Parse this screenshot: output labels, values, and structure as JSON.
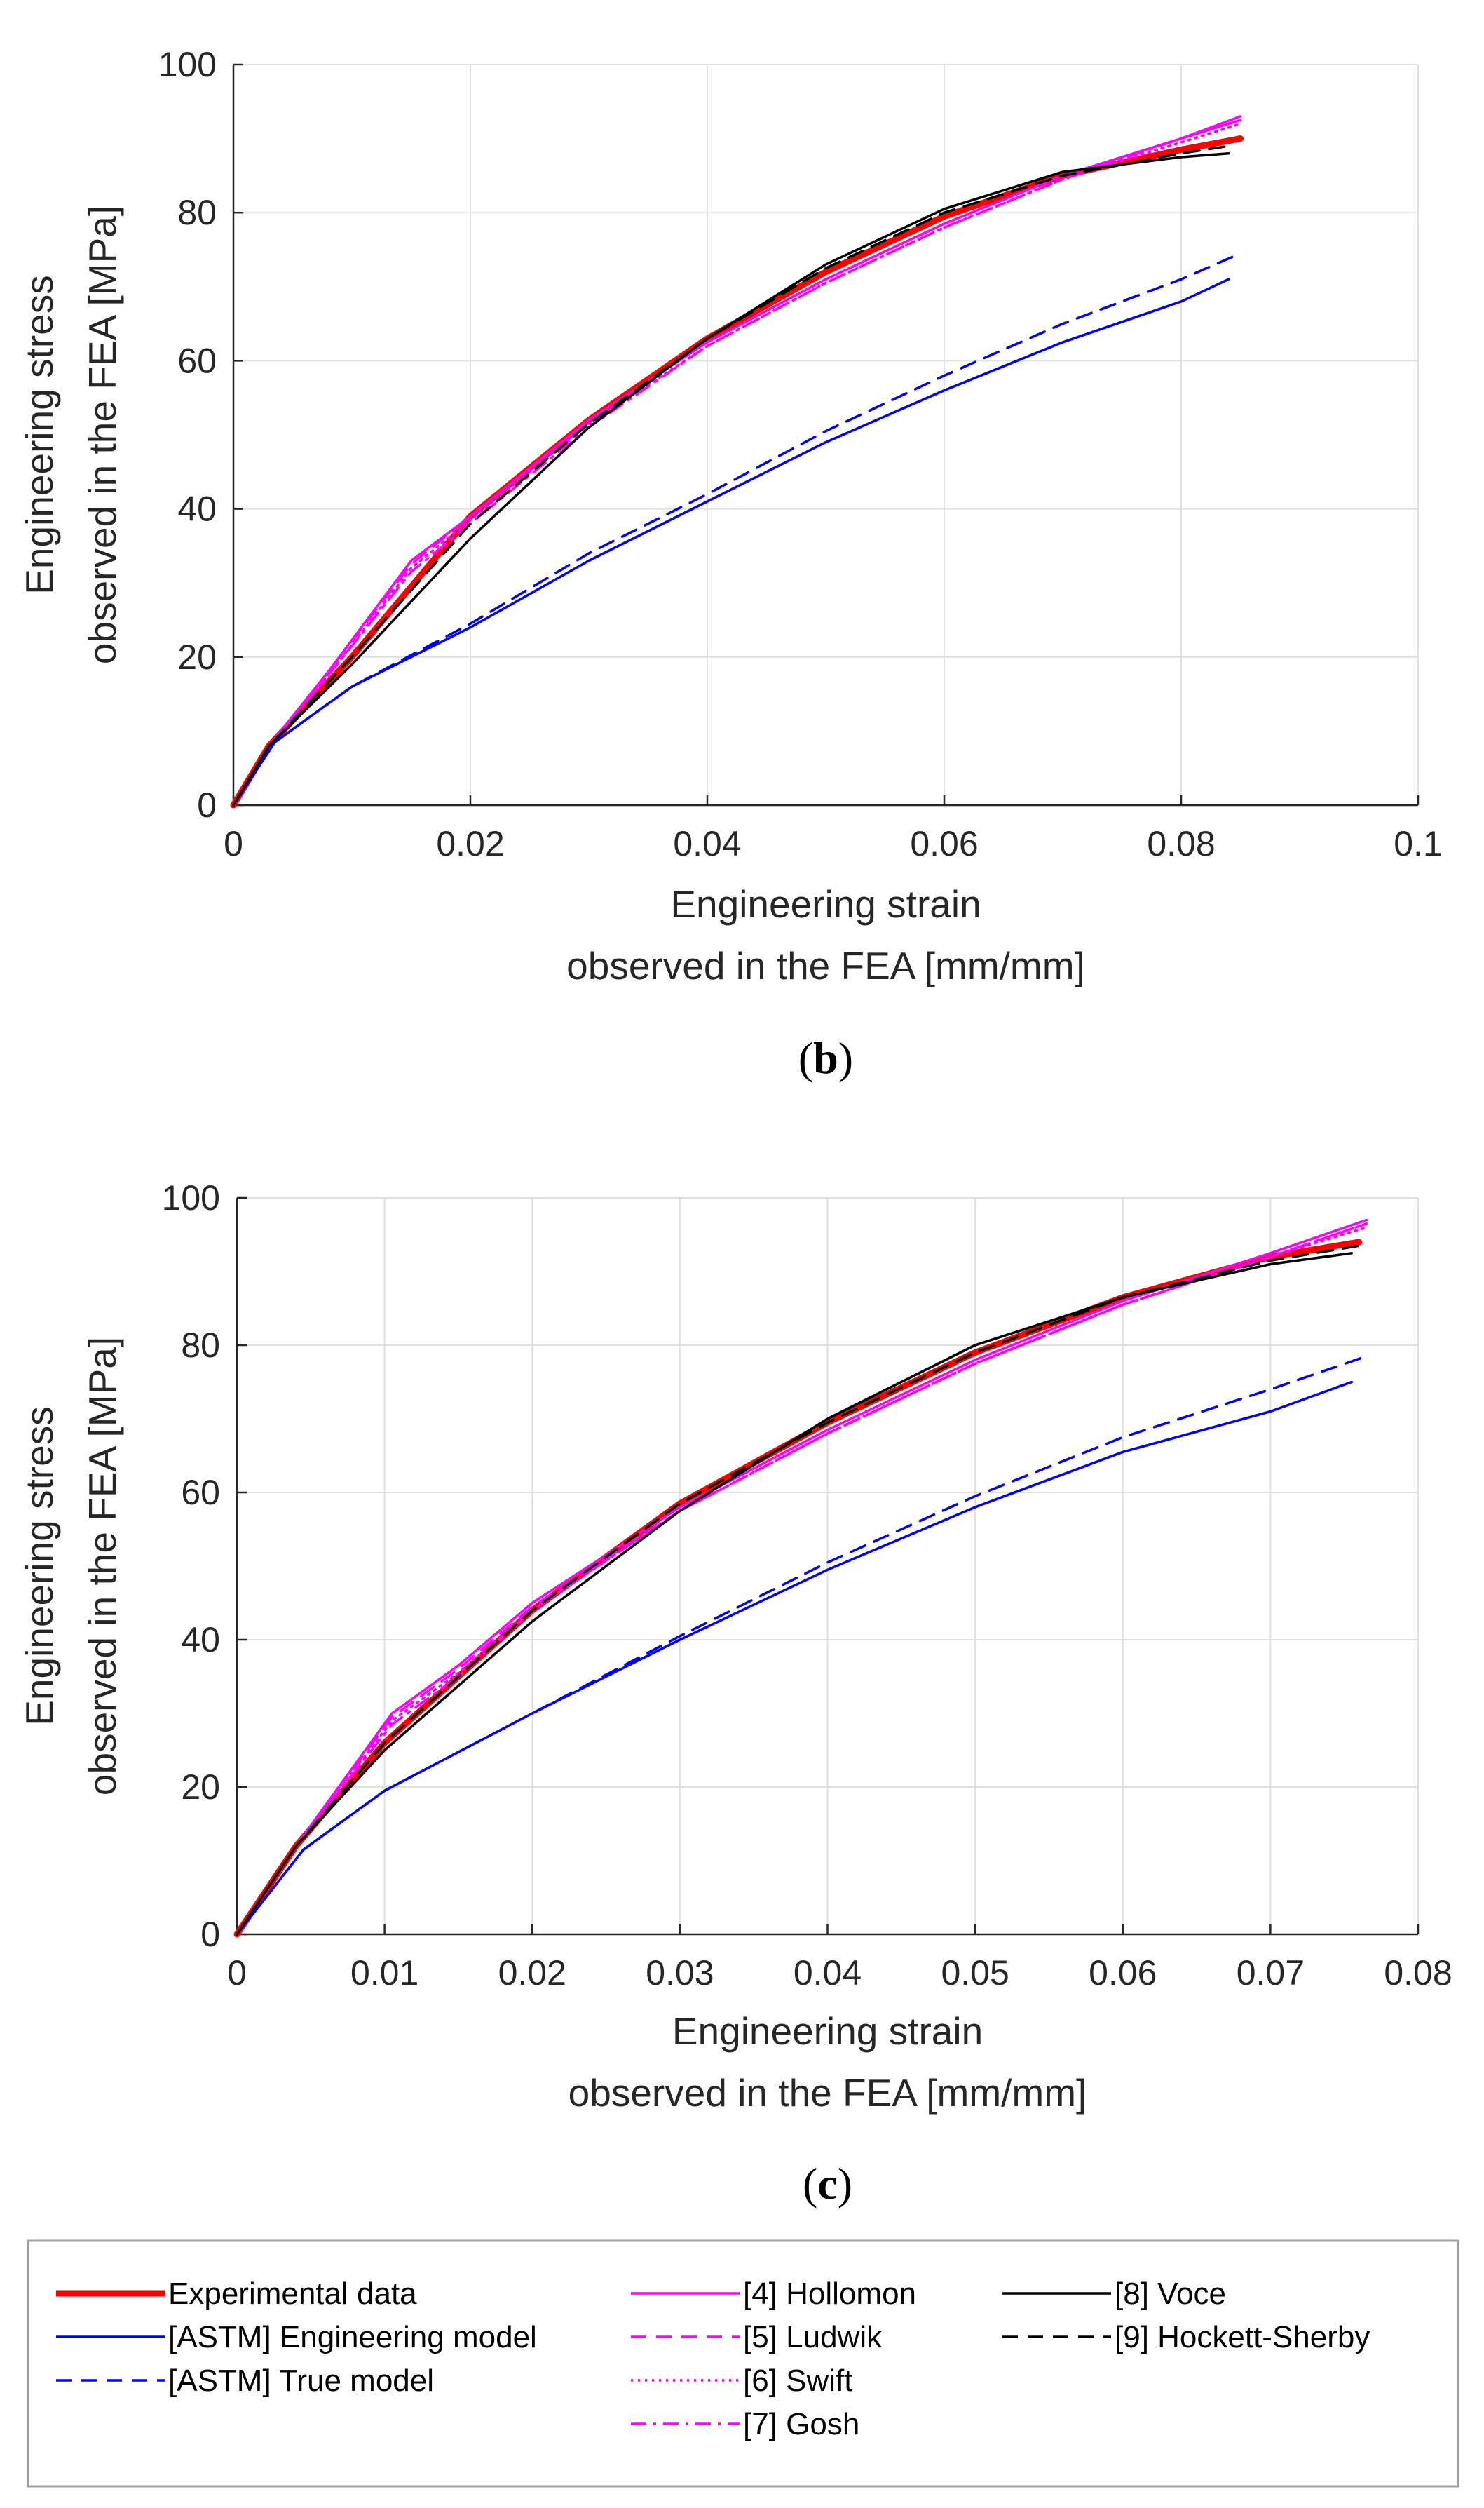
{
  "chart_data": [
    {
      "id": "b",
      "type": "line",
      "panel_label": "(b)",
      "panel_letter": "b",
      "xlabel": "Engineering strain",
      "xlabel2": "observed in the FEA [mm/mm]",
      "ylabel": "Engineering stress",
      "ylabel2": "observed in the FEA [MPa]",
      "xlim": [
        0,
        0.1
      ],
      "ylim": [
        0,
        100
      ],
      "xticks": [
        0,
        0.02,
        0.04,
        0.06,
        0.08,
        0.1
      ],
      "xtick_labels": [
        "0",
        "0.02",
        "0.04",
        "0.06",
        "0.08",
        "0.1"
      ],
      "yticks": [
        0,
        20,
        40,
        60,
        80,
        100
      ],
      "ytick_labels": [
        "0",
        "20",
        "40",
        "60",
        "80",
        "100"
      ],
      "grid": true,
      "series": [
        {
          "name": "Experimental data",
          "x": [
            0,
            0.003,
            0.01,
            0.02,
            0.03,
            0.04,
            0.05,
            0.06,
            0.07,
            0.08,
            0.085
          ],
          "y": [
            0,
            8,
            20,
            39,
            52,
            63,
            72,
            79.5,
            85,
            88.5,
            90
          ]
        },
        {
          "name": "[ASTM] Engineering model",
          "x": [
            0,
            0.0035,
            0.01,
            0.02,
            0.03,
            0.04,
            0.05,
            0.06,
            0.07,
            0.08,
            0.084
          ],
          "y": [
            0,
            8.5,
            16,
            24,
            33,
            41,
            49,
            56,
            62.5,
            68,
            71
          ]
        },
        {
          "name": "[ASTM] True model",
          "x": [
            0,
            0.0035,
            0.01,
            0.02,
            0.03,
            0.04,
            0.05,
            0.06,
            0.07,
            0.08,
            0.085
          ],
          "y": [
            0,
            8.5,
            16,
            24.5,
            34,
            42,
            50.5,
            58,
            65,
            71,
            74.5
          ]
        },
        {
          "name": "[4] Hollomon",
          "x": [
            0,
            0.003,
            0.008,
            0.015,
            0.02,
            0.03,
            0.04,
            0.05,
            0.06,
            0.07,
            0.08,
            0.085
          ],
          "y": [
            0,
            8,
            18,
            33,
            39,
            52,
            62.5,
            71,
            78.5,
            85,
            90,
            93
          ]
        },
        {
          "name": "[5] Ludwik",
          "x": [
            0,
            0.003,
            0.008,
            0.015,
            0.02,
            0.03,
            0.04,
            0.05,
            0.06,
            0.07,
            0.08,
            0.085
          ],
          "y": [
            0,
            8,
            18,
            32.5,
            39,
            52,
            62.5,
            71,
            78.5,
            85,
            90,
            92.5
          ]
        },
        {
          "name": "[6] Swift",
          "x": [
            0,
            0.003,
            0.008,
            0.015,
            0.02,
            0.03,
            0.04,
            0.05,
            0.06,
            0.07,
            0.08,
            0.085
          ],
          "y": [
            0,
            8,
            17.5,
            32,
            38.5,
            51.5,
            62,
            70.5,
            78,
            84.5,
            89.5,
            92
          ]
        },
        {
          "name": "[7] Gosh",
          "x": [
            0,
            0.003,
            0.008,
            0.015,
            0.02,
            0.03,
            0.04,
            0.05,
            0.06,
            0.07,
            0.08,
            0.085
          ],
          "y": [
            0,
            8,
            17.5,
            31.5,
            38,
            51,
            62,
            70.5,
            78,
            84.5,
            90,
            92.5
          ]
        },
        {
          "name": "[8] Voce",
          "x": [
            0,
            0.003,
            0.01,
            0.02,
            0.03,
            0.04,
            0.05,
            0.06,
            0.07,
            0.08,
            0.084
          ],
          "y": [
            0,
            8,
            19,
            36,
            51,
            63,
            73,
            80.5,
            85.5,
            87.5,
            88
          ]
        },
        {
          "name": "[9] Hockett-Sherby",
          "x": [
            0,
            0.003,
            0.01,
            0.02,
            0.03,
            0.04,
            0.05,
            0.06,
            0.07,
            0.08,
            0.084
          ],
          "y": [
            0,
            8,
            20,
            38,
            51.5,
            63,
            72.5,
            80,
            85,
            88,
            89
          ]
        }
      ]
    },
    {
      "id": "c",
      "type": "line",
      "panel_label": "(c)",
      "panel_letter": "c",
      "xlabel": "Engineering strain",
      "xlabel2": "observed in the FEA [mm/mm]",
      "ylabel": "Engineering stress",
      "ylabel2": "observed in the FEA [MPa]",
      "xlim": [
        0,
        0.08
      ],
      "ylim": [
        0,
        100
      ],
      "xticks": [
        0,
        0.01,
        0.02,
        0.03,
        0.04,
        0.05,
        0.06,
        0.07,
        0.08
      ],
      "xtick_labels": [
        "0",
        "0.01",
        "0.02",
        "0.03",
        "0.04",
        "0.05",
        "0.06",
        "0.07",
        "0.08"
      ],
      "yticks": [
        0,
        20,
        40,
        60,
        80,
        100
      ],
      "ytick_labels": [
        "0",
        "20",
        "40",
        "60",
        "80",
        "100"
      ],
      "grid": true,
      "series": [
        {
          "name": "Experimental data",
          "x": [
            0,
            0.004,
            0.01,
            0.02,
            0.03,
            0.04,
            0.05,
            0.06,
            0.07,
            0.076
          ],
          "y": [
            0,
            12,
            26,
            44,
            58.5,
            69.5,
            79,
            86.5,
            92,
            94
          ]
        },
        {
          "name": "[ASTM] Engineering model",
          "x": [
            0,
            0.0045,
            0.01,
            0.02,
            0.03,
            0.04,
            0.05,
            0.06,
            0.07,
            0.0755
          ],
          "y": [
            0,
            11.5,
            19.5,
            30,
            40,
            49.5,
            58,
            65.5,
            71,
            75
          ]
        },
        {
          "name": "[ASTM] True model",
          "x": [
            0,
            0.0045,
            0.01,
            0.02,
            0.03,
            0.04,
            0.05,
            0.06,
            0.07,
            0.0765
          ],
          "y": [
            0,
            11.5,
            19.5,
            30,
            40.5,
            50.5,
            59.5,
            67.5,
            74,
            78.5
          ]
        },
        {
          "name": "[4] Hollomon",
          "x": [
            0,
            0.004,
            0.0105,
            0.015,
            0.02,
            0.03,
            0.04,
            0.05,
            0.06,
            0.07,
            0.0765
          ],
          "y": [
            0,
            12,
            30,
            36.5,
            45,
            58,
            68.5,
            78,
            86,
            92.5,
            97
          ]
        },
        {
          "name": "[5] Ludwik",
          "x": [
            0,
            0.004,
            0.0105,
            0.015,
            0.02,
            0.03,
            0.04,
            0.05,
            0.06,
            0.07,
            0.0765
          ],
          "y": [
            0,
            12,
            29.5,
            36,
            44.5,
            57.5,
            68,
            77.5,
            85.5,
            92,
            96.5
          ]
        },
        {
          "name": "[6] Swift",
          "x": [
            0,
            0.004,
            0.0105,
            0.015,
            0.02,
            0.03,
            0.04,
            0.05,
            0.06,
            0.07,
            0.0765
          ],
          "y": [
            0,
            12,
            29,
            35.5,
            44,
            57.5,
            68,
            77.5,
            85.5,
            92,
            96
          ]
        },
        {
          "name": "[7] Gosh",
          "x": [
            0,
            0.004,
            0.0105,
            0.015,
            0.02,
            0.03,
            0.04,
            0.05,
            0.06,
            0.07,
            0.0765
          ],
          "y": [
            0,
            12,
            28.5,
            35,
            44,
            57.5,
            68,
            77.5,
            85.5,
            92,
            96.5
          ]
        },
        {
          "name": "[8] Voce",
          "x": [
            0,
            0.004,
            0.01,
            0.02,
            0.03,
            0.04,
            0.05,
            0.06,
            0.07,
            0.0755
          ],
          "y": [
            0,
            12,
            25,
            42.5,
            57.5,
            70,
            80,
            86.5,
            91,
            92.5
          ]
        },
        {
          "name": "[9] Hockett-Sherby",
          "x": [
            0,
            0.004,
            0.01,
            0.02,
            0.03,
            0.04,
            0.05,
            0.06,
            0.07,
            0.076
          ],
          "y": [
            0,
            12,
            26,
            44,
            58.5,
            69.5,
            79,
            86.5,
            91.5,
            93.5
          ]
        }
      ]
    }
  ],
  "legend": {
    "entries": [
      {
        "name": "Experimental data",
        "color": "#ff0000",
        "style": "solid"
      },
      {
        "name": "[ASTM] Engineering model",
        "color": "#0000ff",
        "style": "solid"
      },
      {
        "name": "[ASTM] True model",
        "color": "#0000ff",
        "style": "dashed"
      },
      {
        "name": "[4] Hollomon",
        "color": "#ff00ff",
        "style": "solid"
      },
      {
        "name": "[5] Ludwik",
        "color": "#ff00ff",
        "style": "dashed"
      },
      {
        "name": "[6] Swift",
        "color": "#ff00ff",
        "style": "dotted"
      },
      {
        "name": "[7] Gosh",
        "color": "#ff00ff",
        "style": "dashdot"
      },
      {
        "name": "[8] Voce",
        "color": "#000000",
        "style": "solid"
      },
      {
        "name": "[9] Hockett-Sherby",
        "color": "#000000",
        "style": "dashed"
      }
    ]
  }
}
